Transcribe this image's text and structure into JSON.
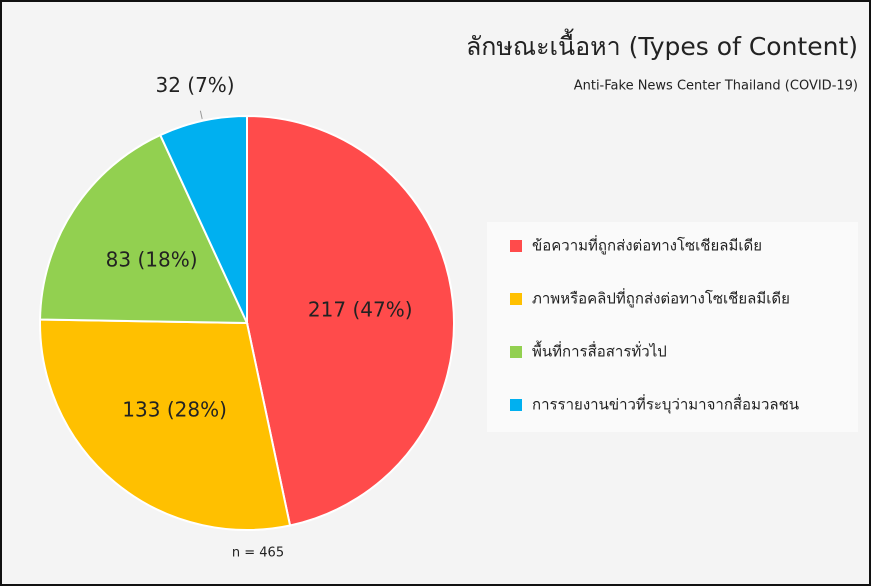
{
  "chart_data": {
    "type": "pie",
    "title": "ลักษณะเนื้อหา (Types of Content)",
    "subtitle": "Anti-Fake News Center Thailand (COVID-19)",
    "annotation": "n = 465",
    "categories": [
      "ข้อความที่ถูกส่งต่อทางโซเชียลมีเดีย",
      "ภาพหรือคลิปที่ถูกส่งต่อทางโซเชียลมีเดีย",
      "พื้นที่การสื่อสารทั่วไป",
      "การรายงานข่าวที่ระบุว่ามาจากสื่อมวลชน"
    ],
    "values": [
      217,
      133,
      83,
      32
    ],
    "value_labels": [
      "217 (47%)",
      "133 (28%)",
      "83 (18%)",
      "32 (7%)"
    ],
    "colors": [
      "#ff4b4b",
      "#ffc000",
      "#92d050",
      "#00b0f0"
    ],
    "legend": "right"
  }
}
